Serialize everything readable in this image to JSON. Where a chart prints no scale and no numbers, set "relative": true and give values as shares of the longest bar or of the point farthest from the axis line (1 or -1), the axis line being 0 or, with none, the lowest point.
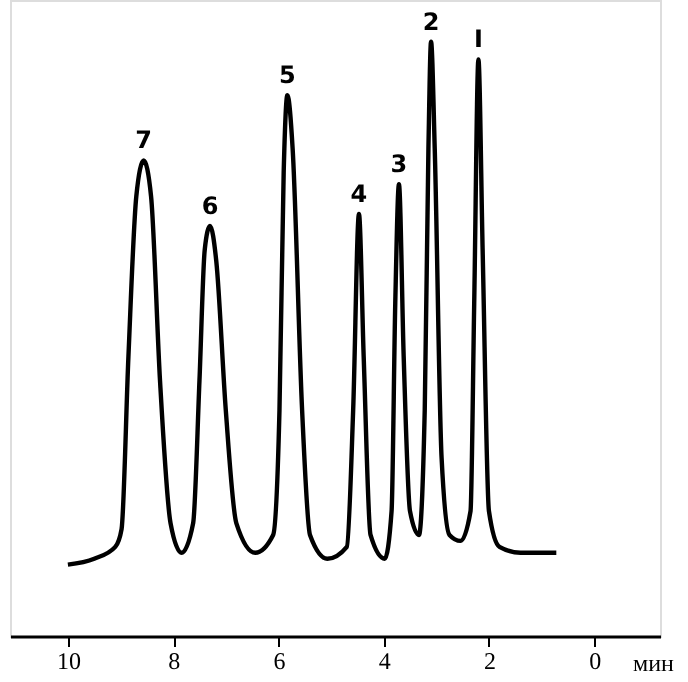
{
  "chart_data": {
    "type": "line",
    "relative": true,
    "xlabel": "мин",
    "xlim": [
      11.1,
      -1.25
    ],
    "xticks": [
      10,
      8,
      6,
      4,
      2,
      0
    ],
    "grid": false,
    "line_style": "solid",
    "color": "#000000",
    "x": [
      10.0,
      9.5,
      9.1,
      8.98,
      8.85,
      8.7,
      8.56,
      8.42,
      8.25,
      8.05,
      7.84,
      7.62,
      7.5,
      7.4,
      7.3,
      7.18,
      7.0,
      6.8,
      6.44,
      6.1,
      5.98,
      5.9,
      5.83,
      5.73,
      5.55,
      5.4,
      5.07,
      4.7,
      4.58,
      4.47,
      4.38,
      4.25,
      3.98,
      3.85,
      3.78,
      3.71,
      3.62,
      3.5,
      3.33,
      3.22,
      3.15,
      3.1,
      3.03,
      2.9,
      2.75,
      2.54,
      2.35,
      2.28,
      2.2,
      2.12,
      2.0,
      1.8,
      1.4,
      0.72
    ],
    "values": [
      0.12,
      0.13,
      0.15,
      0.18,
      0.47,
      0.74,
      0.8,
      0.74,
      0.43,
      0.19,
      0.14,
      0.19,
      0.43,
      0.65,
      0.69,
      0.63,
      0.38,
      0.19,
      0.14,
      0.17,
      0.38,
      0.78,
      0.91,
      0.82,
      0.38,
      0.17,
      0.13,
      0.15,
      0.38,
      0.71,
      0.47,
      0.17,
      0.13,
      0.21,
      0.56,
      0.76,
      0.47,
      0.21,
      0.17,
      0.38,
      0.82,
      1.0,
      0.82,
      0.3,
      0.17,
      0.16,
      0.21,
      0.56,
      0.97,
      0.65,
      0.21,
      0.15,
      0.14,
      0.14
    ],
    "annotations": [
      {
        "text": "7",
        "x": 8.56,
        "y": 0.8
      },
      {
        "text": "6",
        "x": 7.3,
        "y": 0.69
      },
      {
        "text": "5",
        "x": 5.83,
        "y": 0.91
      },
      {
        "text": "4",
        "x": 4.47,
        "y": 0.71
      },
      {
        "text": "3",
        "x": 3.71,
        "y": 0.76
      },
      {
        "text": "2",
        "x": 3.1,
        "y": 1.0
      },
      {
        "text": "I",
        "x": 2.2,
        "y": 0.97
      }
    ]
  }
}
